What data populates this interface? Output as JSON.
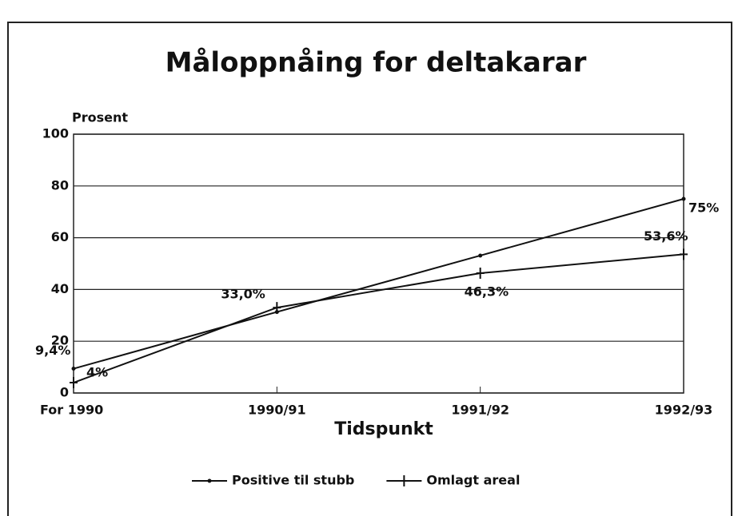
{
  "chart_data": {
    "type": "line",
    "title": "Måloppnåing for deltakarar",
    "y_label": "Prosent",
    "x_label": "Tidspunkt",
    "categories": [
      "For 1990",
      "1990/91",
      "1991/92",
      "1992/93"
    ],
    "series": [
      {
        "name": "Positive til stubb",
        "color": "#111111",
        "marker": "dot",
        "values": [
          9.4,
          31.3,
          53.1,
          75
        ],
        "value_labels": [
          "9,4%",
          null,
          null,
          "75%"
        ]
      },
      {
        "name": "Omlagt areal",
        "color": "#111111",
        "marker": "plus",
        "values": [
          4,
          33.0,
          46.3,
          53.6
        ],
        "value_labels": [
          "4%",
          "33,0%",
          "46,3%",
          "53,6%"
        ]
      }
    ],
    "ylim": [
      0,
      100
    ],
    "yticks": [
      0,
      20,
      40,
      60,
      80,
      100
    ],
    "grid": true,
    "legend": "bottom"
  }
}
